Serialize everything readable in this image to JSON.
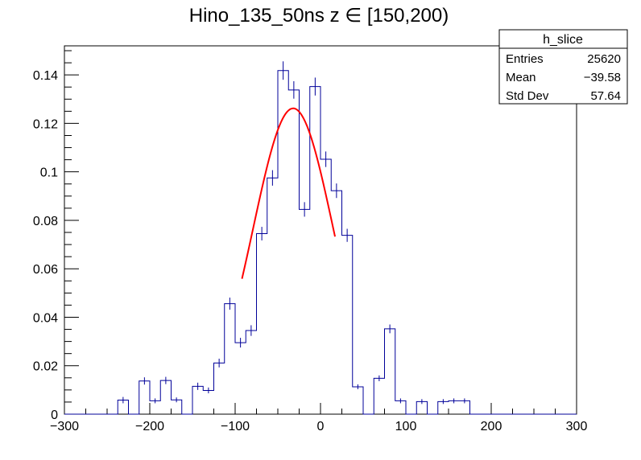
{
  "chart_data": {
    "type": "histogram",
    "title": "Hino_135_50ns z  ∈ [150,200)",
    "xlabel": "",
    "ylabel": "",
    "xlim": [
      -300,
      300
    ],
    "ylim": [
      0,
      0.152
    ],
    "x_ticks": [
      -300,
      -200,
      -100,
      0,
      100,
      200,
      300
    ],
    "x_tick_labels": [
      "−300",
      "−200",
      "−100",
      "0",
      "100",
      "200",
      "300"
    ],
    "y_ticks": [
      0,
      0.02,
      0.04,
      0.06,
      0.08,
      0.1,
      0.12,
      0.14
    ],
    "y_tick_labels": [
      "0",
      "0.02",
      "0.04",
      "0.06",
      "0.08",
      "0.1",
      "0.12",
      "0.14"
    ],
    "grid": false,
    "histogram": {
      "color": "#000099",
      "bin_edges": [
        -300,
        -287.5,
        -275,
        -262.5,
        -250,
        -237.5,
        -225,
        -212.5,
        -200,
        -187.5,
        -175,
        -162.5,
        -150,
        -137.5,
        -125,
        -112.5,
        -100,
        -87.5,
        -75,
        -62.5,
        -50,
        -37.5,
        -25,
        -12.5,
        0,
        12.5,
        25,
        37.5,
        50,
        62.5,
        75,
        87.5,
        100,
        112.5,
        125,
        137.5,
        150,
        162.5,
        175,
        187.5,
        200,
        212.5,
        225,
        237.5,
        250,
        262.5,
        275,
        287.5,
        300
      ],
      "values": [
        0,
        0,
        0,
        0,
        0,
        0.0058,
        0,
        0.0137,
        0.0055,
        0.0139,
        0.0059,
        0,
        0.0115,
        0.0098,
        0.0211,
        0.0456,
        0.0295,
        0.0345,
        0.0745,
        0.0975,
        0.1418,
        0.1338,
        0.0845,
        0.1352,
        0.1052,
        0.0922,
        0.0738,
        0.0113,
        0,
        0.0148,
        0.0352,
        0.0055,
        0,
        0.0052,
        0,
        0.0052,
        0.0055,
        0.0055,
        0,
        0,
        0,
        0,
        0,
        0,
        0,
        0,
        0,
        0
      ],
      "errors": [
        0,
        0,
        0,
        0,
        0,
        0.0013,
        0,
        0.0015,
        0.001,
        0.0015,
        0.001,
        0,
        0.0015,
        0.0012,
        0.0018,
        0.0025,
        0.002,
        0.0022,
        0.0028,
        0.0032,
        0.0038,
        0.0036,
        0.003,
        0.0037,
        0.0032,
        0.003,
        0.0027,
        0.001,
        0,
        0.0012,
        0.0018,
        0.001,
        0,
        0.001,
        0,
        0.001,
        0.001,
        0.001,
        0,
        0,
        0,
        0,
        0,
        0,
        0,
        0,
        0,
        0
      ]
    },
    "fit": {
      "type": "gaussian",
      "color": "#ff0000",
      "amplitude": 0.1262,
      "mean": -32,
      "sigma": 47,
      "range": [
        -92,
        17
      ]
    },
    "legend_position": "top-right",
    "stats": {
      "name": "h_slice",
      "rows": [
        {
          "label": "Entries",
          "value": "25620"
        },
        {
          "label": "Mean",
          "value": "−39.58"
        },
        {
          "label": "Std Dev",
          "value": "57.64"
        }
      ]
    }
  }
}
